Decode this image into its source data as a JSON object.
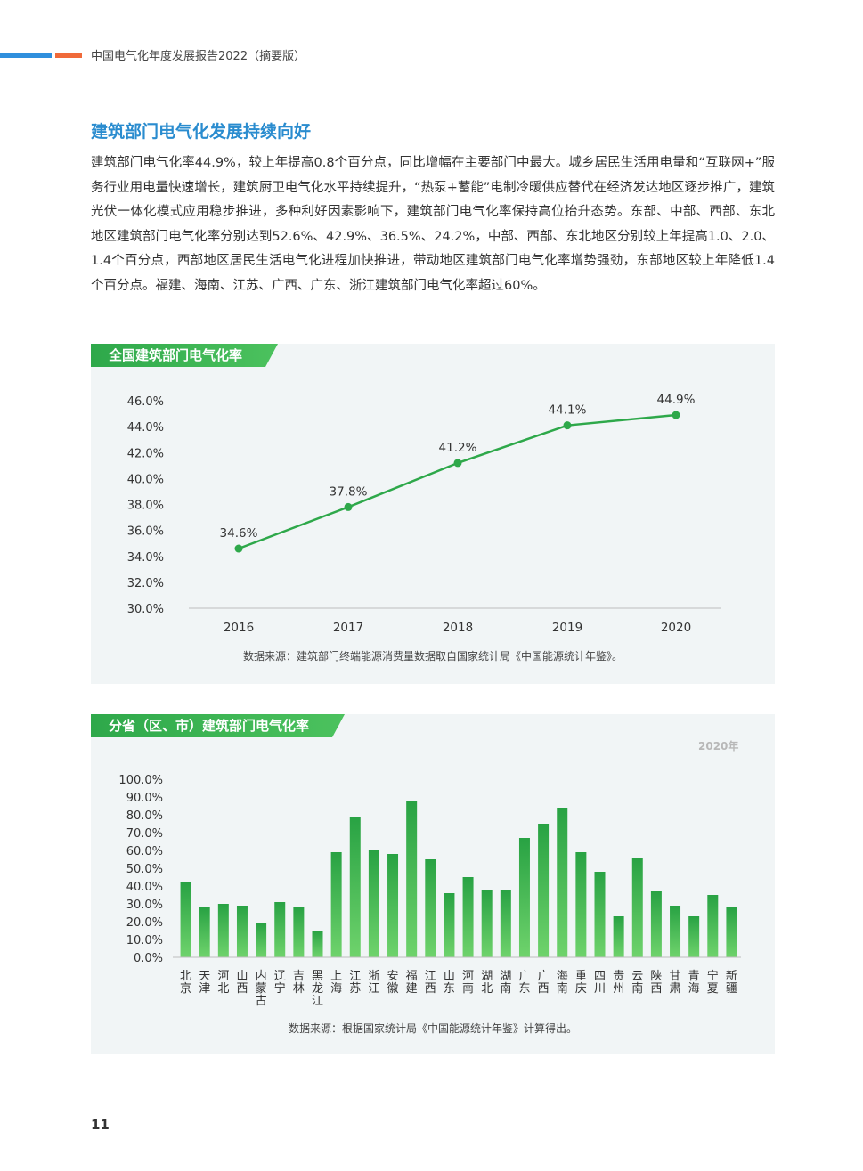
{
  "header": {
    "report_title": "中国电气化年度发展报告2022（摘要版）",
    "colors": {
      "blue": "#2f8fdd",
      "orange": "#f06a3a"
    }
  },
  "section": {
    "title": "建筑部门电气化发展持续向好",
    "paragraph": "建筑部门电气化率44.9%，较上年提高0.8个百分点，同比增幅在主要部门中最大。城乡居民生活用电量和“互联网+”服务行业用电量快速增长，建筑厨卫电气化水平持续提升，“热泵+蓄能”电制冷暖供应替代在经济发达地区逐步推广，建筑光伏一体化模式应用稳步推进，多种利好因素影响下，建筑部门电气化率保持高位抬升态势。东部、中部、西部、东北地区建筑部门电气化率分别达到52.6%、42.9%、36.5%、24.2%，中部、西部、东北地区分别较上年提高1.0、2.0、1.4个百分点，西部地区居民生活电气化进程加快推进，带动地区建筑部门电气化率增势强劲，东部地区较上年降低1.4个百分点。福建、海南、江苏、广西、广东、浙江建筑部门电气化率超过60%。"
  },
  "chart_data": [
    {
      "type": "line",
      "title": "全国建筑部门电气化率",
      "categories": [
        "2016",
        "2017",
        "2018",
        "2019",
        "2020"
      ],
      "values": [
        34.6,
        37.8,
        41.2,
        44.1,
        44.9
      ],
      "value_labels": [
        "34.6%",
        "37.8%",
        "41.2%",
        "44.1%",
        "44.9%"
      ],
      "ylim": [
        30,
        46
      ],
      "yticks": [
        "30.0%",
        "32.0%",
        "34.0%",
        "36.0%",
        "38.0%",
        "40.0%",
        "42.0%",
        "44.0%",
        "46.0%"
      ],
      "grid": false,
      "color": "#2ea84a",
      "source": "数据来源：建筑部门终端能源消费量数据取自国家统计局《中国能源统计年鉴》。"
    },
    {
      "type": "bar",
      "title": "分省（区、市）建筑部门电气化率",
      "year_note": "2020年",
      "categories": [
        "北京",
        "天津",
        "河北",
        "山西",
        "内蒙古",
        "辽宁",
        "吉林",
        "黑龙江",
        "上海",
        "江苏",
        "浙江",
        "安徽",
        "福建",
        "江西",
        "山东",
        "河南",
        "湖北",
        "湖南",
        "广东",
        "广西",
        "海南",
        "重庆",
        "四川",
        "贵州",
        "云南",
        "陕西",
        "甘肃",
        "青海",
        "宁夏",
        "新疆"
      ],
      "values": [
        42,
        28,
        30,
        29,
        19,
        31,
        28,
        15,
        59,
        79,
        60,
        58,
        88,
        55,
        36,
        45,
        38,
        38,
        67,
        75,
        84,
        59,
        48,
        23,
        56,
        37,
        29,
        23,
        35,
        28
      ],
      "ylim": [
        0,
        100
      ],
      "yticks": [
        "0.0%",
        "10.0%",
        "20.0%",
        "30.0%",
        "40.0%",
        "50.0%",
        "60.0%",
        "70.0%",
        "80.0%",
        "90.0%",
        "100.0%"
      ],
      "grid": false,
      "color": "#2ea84a",
      "source": "数据来源：根据国家统计局《中国能源统计年鉴》计算得出。"
    }
  ],
  "page_number": "11"
}
